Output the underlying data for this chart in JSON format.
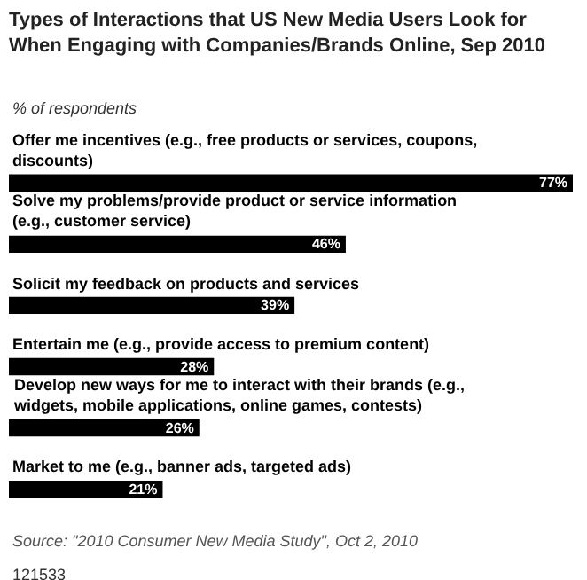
{
  "chart_data": {
    "type": "bar",
    "orientation": "horizontal",
    "title": "Types of Interactions that US New Media Users Look for When Engaging with Companies/Brands Online, Sep 2010",
    "subtitle": "% of respondents",
    "categories": [
      "Offer me incentives (e.g., free products or services, coupons, discounts)",
      "Solve my problems/provide product or service information (e.g., customer service)",
      "Solicit my feedback on products and services",
      "Entertain me (e.g., provide access to premium content)",
      "Develop new ways for me to interact with their brands (e.g., widgets, mobile applications, online games, contests)",
      "Market to me (e.g., banner ads, targeted ads)"
    ],
    "values": [
      77,
      46,
      39,
      28,
      26,
      21
    ],
    "value_labels": [
      "77%",
      "46%",
      "39%",
      "28%",
      "26%",
      "21%"
    ],
    "color": "#000000",
    "annotations": [
      "Source: \"2010 Consumer New Media Study\", Oct 2, 2010",
      "121533"
    ]
  }
}
